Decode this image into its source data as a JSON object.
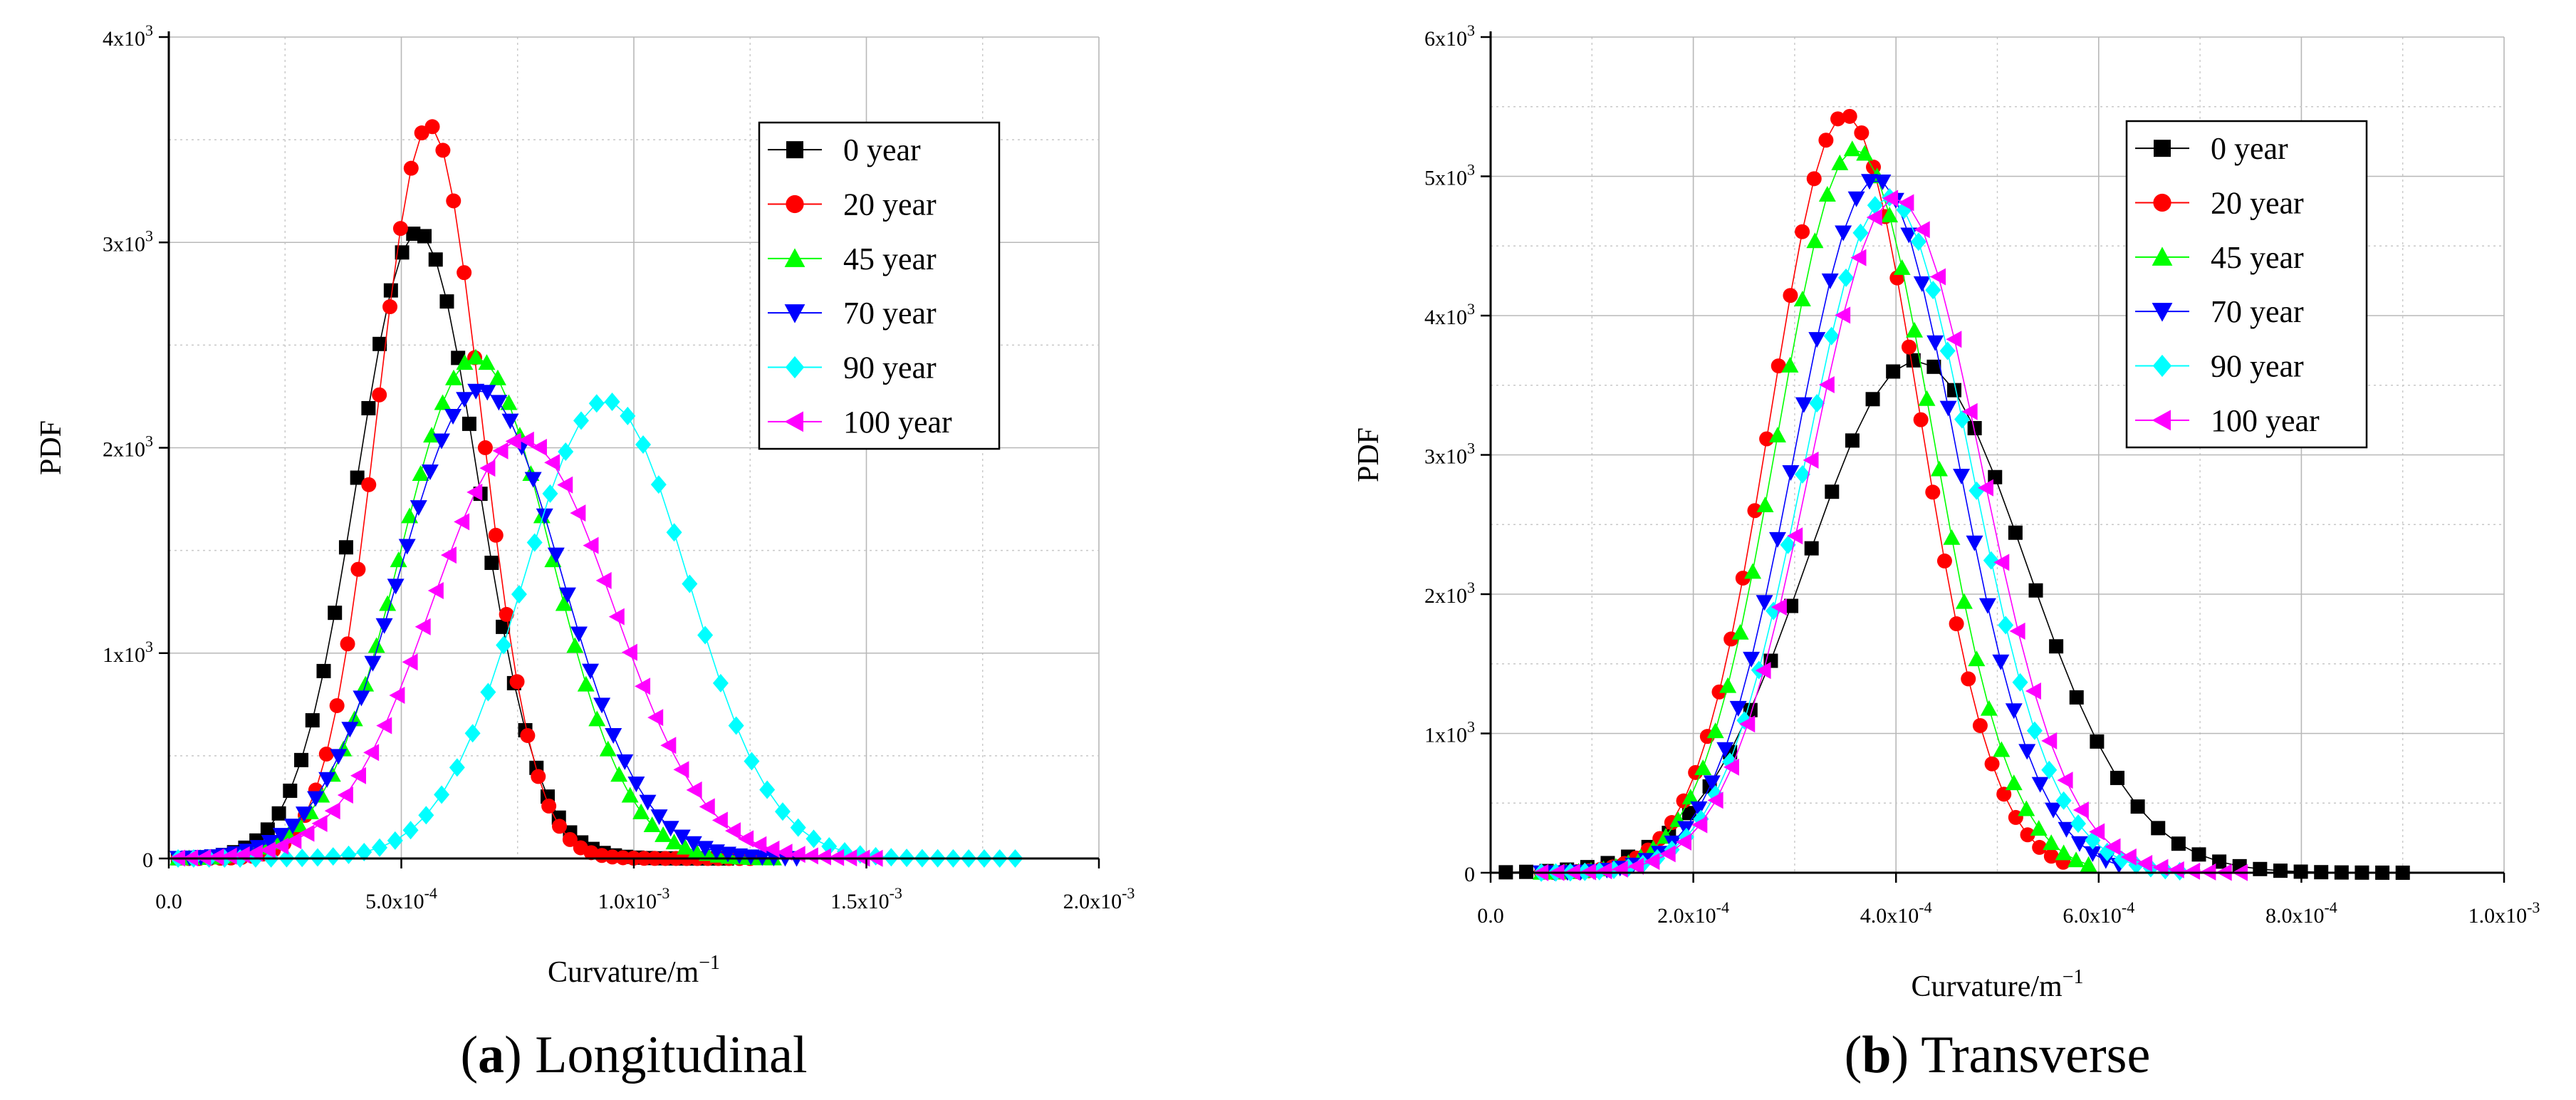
{
  "chart_data": [
    {
      "type": "line",
      "panel_label": "a",
      "caption": "Longitudinal",
      "title": "",
      "xlabel": "Curvature/m",
      "xlabel_sup": "−1",
      "ylabel": "PDF",
      "xlim": [
        0,
        0.002
      ],
      "ylim": [
        0,
        4000
      ],
      "xticks": [
        0,
        0.0005,
        0.001,
        0.0015,
        0.002
      ],
      "xtick_labels": [
        {
          "mant": "0.0",
          "exp": ""
        },
        {
          "mant": "5.0x10",
          "exp": "-4"
        },
        {
          "mant": "1.0x10",
          "exp": "-3"
        },
        {
          "mant": "1.5x10",
          "exp": "-3"
        },
        {
          "mant": "2.0x10",
          "exp": "-3"
        }
      ],
      "yticks": [
        0,
        1000,
        2000,
        3000,
        4000
      ],
      "ytick_labels": [
        {
          "mant": "0",
          "exp": ""
        },
        {
          "mant": "1x10",
          "exp": "3"
        },
        {
          "mant": "2x10",
          "exp": "3"
        },
        {
          "mant": "3x10",
          "exp": "3"
        },
        {
          "mant": "4x10",
          "exp": "3"
        }
      ],
      "grid": true,
      "legend_position": "top-right",
      "series": [
        {
          "name": "0 year",
          "color": "#000000",
          "marker": "square",
          "mean": 0.000535,
          "sd": 0.00013,
          "peak": 3050,
          "xmin": 2e-05,
          "xmax": 0.0012,
          "npts": 50
        },
        {
          "name": "20 year",
          "color": "#ff0000",
          "marker": "circle",
          "mean": 0.00056,
          "sd": 0.000112,
          "peak": 3570,
          "xmin": 2e-05,
          "xmax": 0.00125,
          "npts": 55
        },
        {
          "name": "45 year",
          "color": "#00ff00",
          "marker": "triangle-up",
          "mean": 0.00066,
          "sd": 0.000163,
          "peak": 2440,
          "xmin": 2e-05,
          "xmax": 0.0013,
          "npts": 55
        },
        {
          "name": "70 year",
          "color": "#0000ff",
          "marker": "triangle-down",
          "mean": 0.00067,
          "sd": 0.000175,
          "peak": 2280,
          "xmin": 2e-05,
          "xmax": 0.00135,
          "npts": 55
        },
        {
          "name": "90 year",
          "color": "#00ffff",
          "marker": "diamond",
          "mean": 0.00094,
          "sd": 0.000178,
          "peak": 2230,
          "xmin": 2e-05,
          "xmax": 0.00182,
          "npts": 55
        },
        {
          "name": "100 year",
          "color": "#ff00ff",
          "marker": "triangle-left",
          "mean": 0.00076,
          "sd": 0.000195,
          "peak": 2040,
          "xmin": 2e-05,
          "xmax": 0.00152,
          "npts": 55
        }
      ]
    },
    {
      "type": "line",
      "panel_label": "b",
      "caption": "Transverse",
      "title": "",
      "xlabel": "Curvature/m",
      "xlabel_sup": "−1",
      "ylabel": "PDF",
      "xlim": [
        0,
        0.001
      ],
      "ylim": [
        0,
        6000
      ],
      "xticks": [
        0,
        0.0002,
        0.0004,
        0.0006,
        0.0008,
        0.001
      ],
      "xtick_labels": [
        {
          "mant": "0.0",
          "exp": ""
        },
        {
          "mant": "2.0x10",
          "exp": "-4"
        },
        {
          "mant": "4.0x10",
          "exp": "-4"
        },
        {
          "mant": "6.0x10",
          "exp": "-4"
        },
        {
          "mant": "8.0x10",
          "exp": "-4"
        },
        {
          "mant": "1.0x10",
          "exp": "-3"
        }
      ],
      "yticks": [
        0,
        1000,
        2000,
        3000,
        4000,
        5000,
        6000
      ],
      "ytick_labels": [
        {
          "mant": "0",
          "exp": ""
        },
        {
          "mant": "1x10",
          "exp": "3"
        },
        {
          "mant": "2x10",
          "exp": "3"
        },
        {
          "mant": "3x10",
          "exp": "3"
        },
        {
          "mant": "4x10",
          "exp": "3"
        },
        {
          "mant": "5x10",
          "exp": "3"
        },
        {
          "mant": "6x10",
          "exp": "3"
        }
      ],
      "grid": true,
      "legend_position": "top-right",
      "series": [
        {
          "name": "0 year",
          "color": "#000000",
          "marker": "square",
          "mean": 0.00042,
          "sd": 0.000108,
          "peak": 3680,
          "xmin": 1.5e-05,
          "xmax": 0.0009,
          "npts": 45
        },
        {
          "name": "20 year",
          "color": "#ff0000",
          "marker": "circle",
          "mean": 0.00035,
          "sd": 7.35e-05,
          "peak": 5440,
          "xmin": 5e-05,
          "xmax": 0.000565,
          "npts": 45
        },
        {
          "name": "45 year",
          "color": "#00ff00",
          "marker": "triangle-up",
          "mean": 0.00036,
          "sd": 7.65e-05,
          "peak": 5200,
          "xmin": 5e-05,
          "xmax": 0.00059,
          "npts": 45
        },
        {
          "name": "70 year",
          "color": "#0000ff",
          "marker": "triangle-down",
          "mean": 0.00038,
          "sd": 8e-05,
          "peak": 4980,
          "xmin": 5e-05,
          "xmax": 0.00062,
          "npts": 45
        },
        {
          "name": "90 year",
          "color": "#00ffff",
          "marker": "diamond",
          "mean": 0.000392,
          "sd": 8.2e-05,
          "peak": 4850,
          "xmin": 5e-05,
          "xmax": 0.00068,
          "npts": 45
        },
        {
          "name": "100 year",
          "color": "#ff00ff",
          "marker": "triangle-left",
          "mean": 0.0004,
          "sd": 8.4e-05,
          "peak": 4850,
          "xmin": 5e-05,
          "xmax": 0.00074,
          "npts": 45
        }
      ]
    }
  ]
}
